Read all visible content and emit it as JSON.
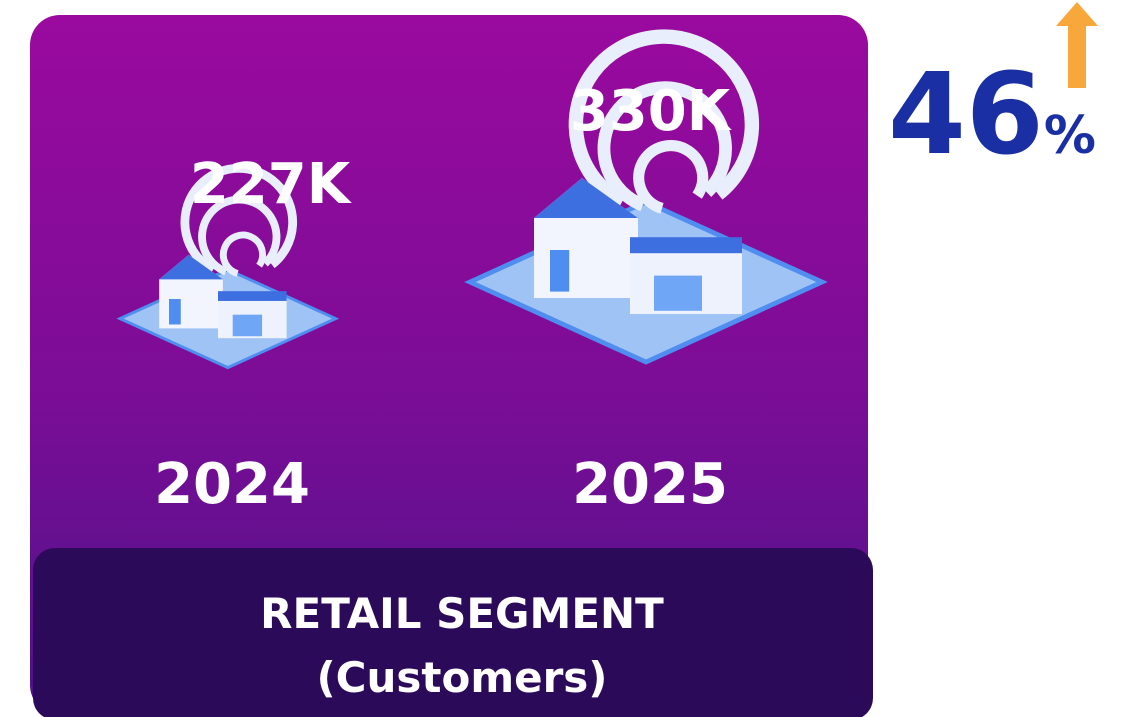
{
  "panel": {
    "items": [
      {
        "value": "227K",
        "year": "2024"
      },
      {
        "value": "330K",
        "year": "2025"
      }
    ],
    "footer": {
      "title": "RETAIL SEGMENT",
      "subtitle": "(Customers)"
    }
  },
  "growth": {
    "value": "46",
    "unit": "%"
  }
}
